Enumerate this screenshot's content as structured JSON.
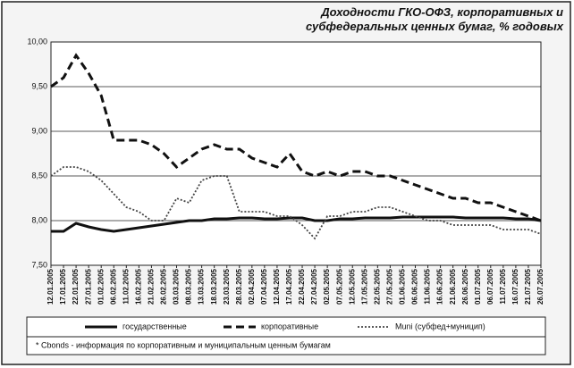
{
  "chart_data": {
    "type": "line",
    "title": "Доходности ГКО-ОФЗ, корпоративных и субфедеральных ценных бумаг, % годовых",
    "categories": [
      "12.01.2005",
      "17.01.2005",
      "22.01.2005",
      "27.01.2005",
      "01.02.2005",
      "06.02.2005",
      "11.02.2005",
      "16.02.2005",
      "21.02.2005",
      "26.02.2005",
      "03.03.2005",
      "08.03.2005",
      "13.03.2005",
      "18.03.2005",
      "23.03.2005",
      "28.03.2005",
      "02.04.2005",
      "07.04.2005",
      "12.04.2005",
      "17.04.2005",
      "22.04.2005",
      "27.04.2005",
      "02.05.2005",
      "07.05.2005",
      "12.05.2005",
      "17.05.2005",
      "22.05.2005",
      "27.05.2005",
      "01.06.2005",
      "06.06.2005",
      "11.06.2005",
      "16.06.2005",
      "21.06.2005",
      "26.06.2005",
      "01.07.2005",
      "06.07.2005",
      "11.07.2005",
      "16.07.2005",
      "21.07.2005",
      "26.07.2005"
    ],
    "series": [
      {
        "name": "государственные",
        "color": "#111111",
        "style": "solid",
        "values": [
          7.88,
          7.88,
          7.97,
          7.93,
          7.9,
          7.88,
          7.9,
          7.92,
          7.94,
          7.96,
          7.98,
          8.0,
          8.0,
          8.02,
          8.02,
          8.03,
          8.03,
          8.02,
          8.02,
          8.03,
          8.03,
          8.0,
          8.0,
          8.02,
          8.02,
          8.03,
          8.03,
          8.03,
          8.04,
          8.04,
          8.04,
          8.04,
          8.04,
          8.03,
          8.03,
          8.03,
          8.03,
          8.02,
          8.02,
          8.0
        ]
      },
      {
        "name": "корпоративные",
        "color": "#111111",
        "style": "dashed",
        "values": [
          9.5,
          9.6,
          9.85,
          9.65,
          9.4,
          8.9,
          8.9,
          8.9,
          8.85,
          8.75,
          8.6,
          8.7,
          8.8,
          8.85,
          8.8,
          8.8,
          8.7,
          8.65,
          8.6,
          8.75,
          8.55,
          8.5,
          8.55,
          8.5,
          8.55,
          8.55,
          8.5,
          8.5,
          8.45,
          8.4,
          8.35,
          8.3,
          8.25,
          8.25,
          8.2,
          8.2,
          8.15,
          8.1,
          8.05,
          8.0
        ]
      },
      {
        "name": "Muni (субфед+муницип)",
        "color": "#444444",
        "style": "dotted",
        "values": [
          8.5,
          8.6,
          8.6,
          8.55,
          8.45,
          8.3,
          8.15,
          8.1,
          8.0,
          8.0,
          8.25,
          8.2,
          8.45,
          8.5,
          8.5,
          8.1,
          8.1,
          8.1,
          8.05,
          8.05,
          7.95,
          7.8,
          8.05,
          8.05,
          8.1,
          8.1,
          8.15,
          8.15,
          8.1,
          8.05,
          8.0,
          8.0,
          7.95,
          7.95,
          7.95,
          7.95,
          7.9,
          7.9,
          7.9,
          7.85
        ]
      }
    ],
    "ylim": [
      7.5,
      10.0
    ],
    "yticks": [
      {
        "value": 7.5,
        "label": "7,50"
      },
      {
        "value": 8.0,
        "label": "8,00"
      },
      {
        "value": 8.5,
        "label": "8,50"
      },
      {
        "value": 9.0,
        "label": "9,00"
      },
      {
        "value": 9.5,
        "label": "9,50"
      },
      {
        "value": 10.0,
        "label": "10,00"
      }
    ],
    "grid": true,
    "footnote": "* Cbonds - информация по корпоративным и муниципальным ценным бумагам"
  }
}
